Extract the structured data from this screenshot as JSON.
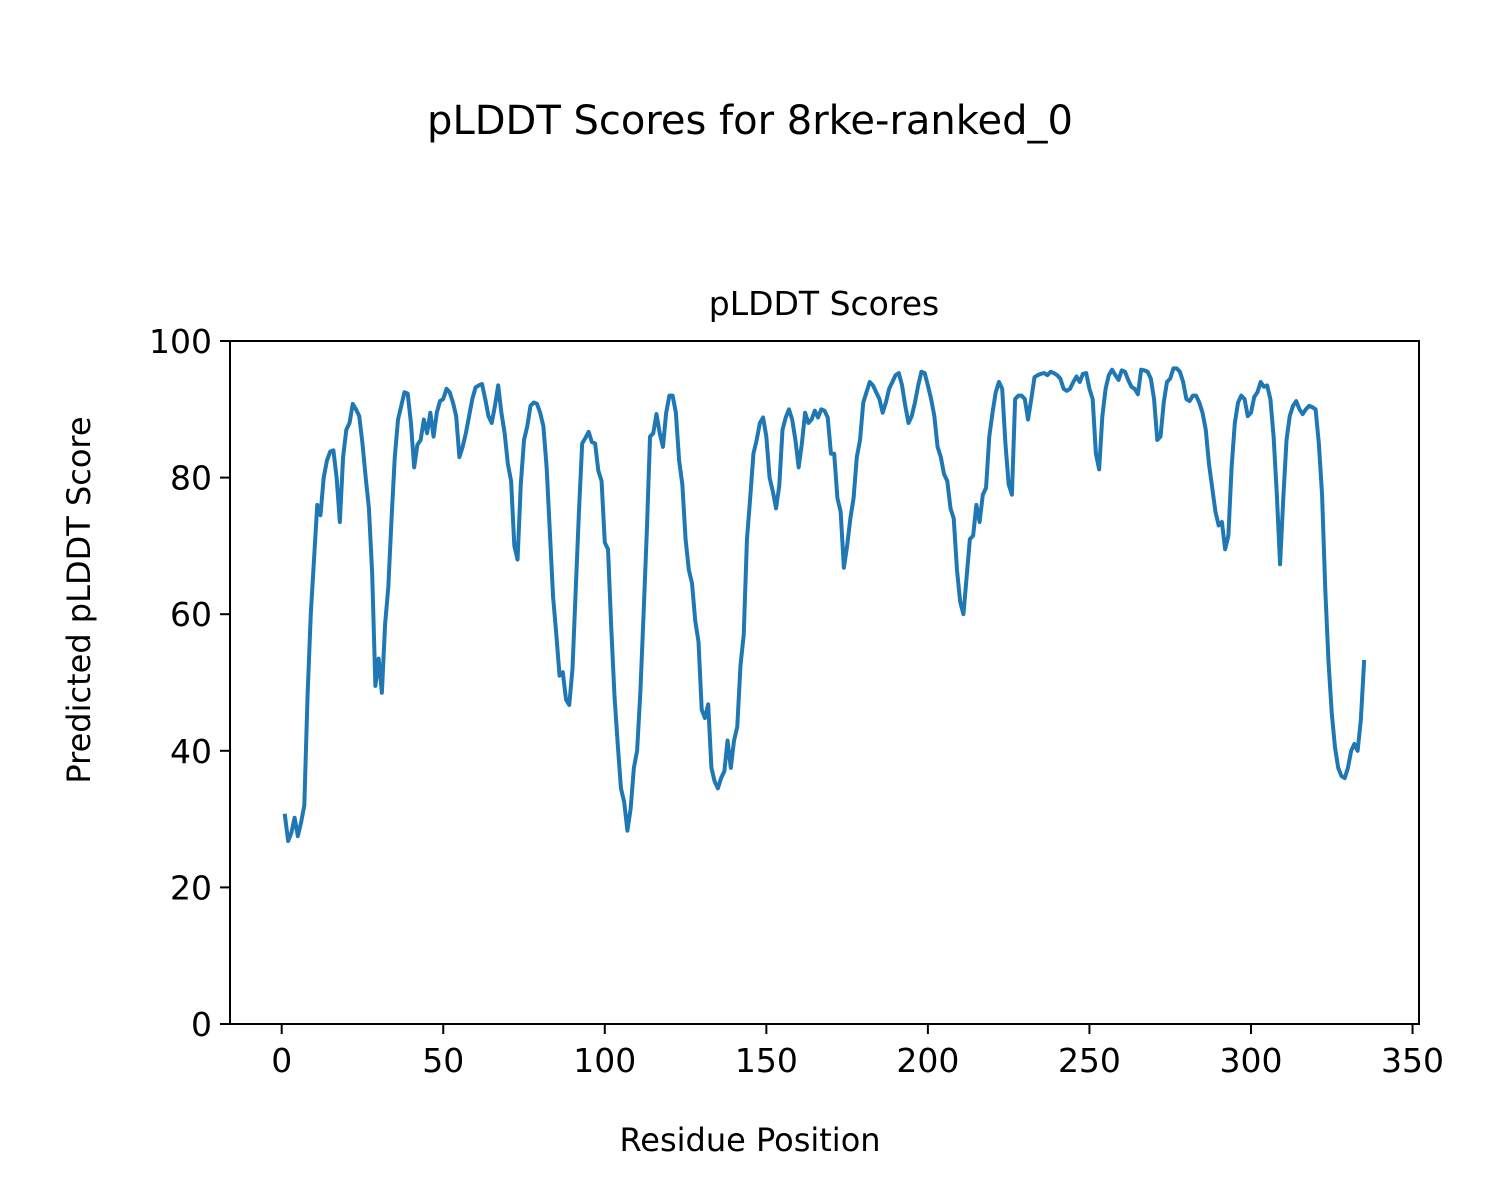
{
  "page": {
    "suptitle": "pLDDT Scores for 8rke-ranked_0"
  },
  "chart_data": {
    "type": "line",
    "title": "pLDDT Scores",
    "xlabel": "Residue Position",
    "ylabel": "Predicted pLDDT Score",
    "xlim": [
      -16,
      352
    ],
    "ylim": [
      0,
      100
    ],
    "xticks": [
      0,
      50,
      100,
      150,
      200,
      250,
      300,
      350
    ],
    "yticks": [
      0,
      20,
      40,
      60,
      80,
      100
    ],
    "grid": false,
    "legend": "none",
    "series": [
      {
        "color": "#1f77b4",
        "x": [
          1,
          2,
          3,
          4,
          5,
          6,
          7,
          8,
          9,
          10,
          11,
          12,
          13,
          14,
          15,
          16,
          17,
          18,
          19,
          20,
          21,
          22,
          23,
          24,
          25,
          26,
          27,
          28,
          29,
          30,
          31,
          32,
          33,
          34,
          35,
          36,
          37,
          38,
          39,
          40,
          41,
          42,
          43,
          44,
          45,
          46,
          47,
          48,
          49,
          50,
          51,
          52,
          53,
          54,
          55,
          56,
          57,
          58,
          59,
          60,
          61,
          62,
          63,
          64,
          65,
          66,
          67,
          68,
          69,
          70,
          71,
          72,
          73,
          74,
          75,
          76,
          77,
          78,
          79,
          80,
          81,
          82,
          83,
          84,
          85,
          86,
          87,
          88,
          89,
          90,
          91,
          92,
          93,
          94,
          95,
          96,
          97,
          98,
          99,
          100,
          101,
          102,
          103,
          104,
          105,
          106,
          107,
          108,
          109,
          110,
          111,
          112,
          113,
          114,
          115,
          116,
          117,
          118,
          119,
          120,
          121,
          122,
          123,
          124,
          125,
          126,
          127,
          128,
          129,
          130,
          131,
          132,
          133,
          134,
          135,
          136,
          137,
          138,
          139,
          140,
          141,
          142,
          143,
          144,
          145,
          146,
          147,
          148,
          149,
          150,
          151,
          152,
          153,
          154,
          155,
          156,
          157,
          158,
          159,
          160,
          161,
          162,
          163,
          164,
          165,
          166,
          167,
          168,
          169,
          170,
          171,
          172,
          173,
          174,
          175,
          176,
          177,
          178,
          179,
          180,
          181,
          182,
          183,
          184,
          185,
          186,
          187,
          188,
          189,
          190,
          191,
          192,
          193,
          194,
          195,
          196,
          197,
          198,
          199,
          200,
          201,
          202,
          203,
          204,
          205,
          206,
          207,
          208,
          209,
          210,
          211,
          212,
          213,
          214,
          215,
          216,
          217,
          218,
          219,
          220,
          221,
          222,
          223,
          224,
          225,
          226,
          227,
          228,
          229,
          230,
          231,
          232,
          233,
          234,
          235,
          236,
          237,
          238,
          239,
          240,
          241,
          242,
          243,
          244,
          245,
          246,
          247,
          248,
          249,
          250,
          251,
          252,
          253,
          254,
          255,
          256,
          257,
          258,
          259,
          260,
          261,
          262,
          263,
          264,
          265,
          266,
          267,
          268,
          269,
          270,
          271,
          272,
          273,
          274,
          275,
          276,
          277,
          278,
          279,
          280,
          281,
          282,
          283,
          284,
          285,
          286,
          287,
          288,
          289,
          290,
          291,
          292,
          293,
          294,
          295,
          296,
          297,
          298,
          299,
          300,
          301,
          302,
          303,
          304,
          305,
          306,
          307,
          308,
          309,
          310,
          311,
          312,
          313,
          314,
          315,
          316,
          317,
          318,
          319,
          320,
          321,
          322,
          323,
          324,
          325,
          326,
          327,
          328,
          329,
          330,
          331,
          332,
          333,
          334,
          335
        ],
        "y": [
          30.5,
          26.8,
          28.0,
          30.2,
          27.5,
          29.5,
          32.0,
          48.0,
          60.0,
          68.0,
          76.0,
          74.5,
          80.0,
          82.5,
          83.8,
          84.0,
          80.0,
          73.5,
          83.0,
          87.0,
          88.0,
          90.8,
          90.0,
          89.0,
          85.0,
          80.0,
          75.5,
          66.0,
          49.5,
          53.5,
          48.5,
          58.5,
          64.0,
          74.0,
          83.0,
          88.5,
          90.5,
          92.5,
          92.3,
          88.0,
          81.5,
          84.8,
          85.5,
          88.5,
          86.5,
          89.5,
          86.0,
          89.5,
          91.2,
          91.5,
          93.0,
          92.5,
          91.0,
          89.0,
          83.0,
          84.5,
          86.5,
          89.0,
          91.5,
          93.2,
          93.5,
          93.7,
          91.5,
          89.0,
          88.0,
          90.5,
          93.5,
          89.5,
          86.5,
          82.0,
          79.5,
          70.0,
          68.0,
          79.0,
          85.5,
          87.5,
          90.5,
          91.0,
          90.8,
          89.5,
          87.5,
          81.5,
          72.0,
          62.5,
          57.0,
          51.0,
          51.5,
          47.5,
          46.7,
          52.0,
          63.5,
          75.0,
          85.0,
          85.8,
          86.7,
          85.2,
          85.0,
          81.0,
          79.5,
          70.5,
          69.5,
          58.0,
          48.0,
          41.0,
          34.5,
          32.5,
          28.3,
          31.5,
          37.5,
          40.0,
          48.5,
          60.0,
          72.0,
          86.0,
          86.5,
          89.3,
          86.5,
          84.5,
          89.5,
          92.0,
          92.0,
          89.5,
          82.5,
          79.0,
          71.0,
          66.5,
          64.5,
          59.0,
          56.0,
          46.0,
          44.8,
          46.8,
          37.5,
          35.5,
          34.5,
          36.0,
          37.0,
          41.5,
          37.5,
          41.5,
          43.5,
          52.5,
          57.0,
          71.0,
          77.0,
          83.5,
          85.5,
          88.0,
          88.8,
          86.0,
          80.0,
          78.0,
          75.5,
          78.8,
          87.0,
          88.8,
          90.0,
          88.5,
          85.5,
          81.5,
          85.0,
          89.5,
          88.0,
          88.5,
          89.8,
          88.8,
          90.0,
          89.8,
          88.8,
          83.5,
          83.5,
          77.0,
          75.0,
          66.8,
          70.0,
          74.0,
          77.0,
          83.0,
          85.5,
          91.0,
          92.5,
          94.0,
          93.5,
          92.5,
          91.5,
          89.5,
          91.0,
          93.0,
          94.0,
          95.0,
          95.3,
          93.5,
          90.5,
          88.0,
          89.0,
          91.0,
          93.5,
          95.5,
          95.3,
          93.5,
          91.5,
          89.0,
          84.5,
          83.0,
          80.5,
          79.5,
          75.5,
          74.0,
          66.5,
          61.8,
          60.0,
          65.5,
          71.0,
          71.5,
          76.0,
          73.5,
          77.5,
          78.5,
          86.0,
          89.5,
          92.5,
          94.0,
          93.0,
          85.0,
          79.0,
          77.5,
          91.5,
          92.0,
          92.0,
          91.5,
          88.5,
          91.5,
          94.7,
          95.0,
          95.2,
          95.3,
          95.0,
          95.5,
          95.3,
          95.0,
          94.5,
          93.0,
          92.7,
          93.0,
          94.0,
          94.8,
          94.0,
          95.2,
          95.3,
          93.0,
          91.5,
          83.5,
          81.2,
          89.0,
          93.0,
          95.0,
          95.8,
          95.0,
          94.3,
          95.7,
          95.5,
          94.3,
          93.3,
          93.0,
          92.2,
          95.8,
          95.7,
          95.5,
          94.5,
          91.5,
          85.5,
          86.0,
          91.0,
          94.0,
          94.5,
          96.0,
          96.0,
          95.5,
          94.0,
          91.5,
          91.2,
          92.0,
          92.0,
          91.0,
          89.5,
          87.0,
          82.0,
          78.5,
          75.0,
          73.0,
          73.5,
          69.5,
          71.5,
          81.5,
          88.0,
          91.0,
          92.0,
          91.5,
          89.0,
          89.5,
          91.8,
          92.5,
          94.0,
          93.3,
          93.5,
          91.5,
          86.0,
          77.5,
          67.3,
          77.0,
          85.5,
          89.0,
          90.5,
          91.2,
          90.0,
          89.3,
          90.0,
          90.5,
          90.3,
          90.0,
          85.0,
          77.5,
          63.5,
          53.0,
          45.5,
          40.5,
          37.5,
          36.3,
          36.0,
          37.5,
          40.0,
          41.0,
          40.0,
          44.5,
          53.0
        ]
      }
    ]
  }
}
